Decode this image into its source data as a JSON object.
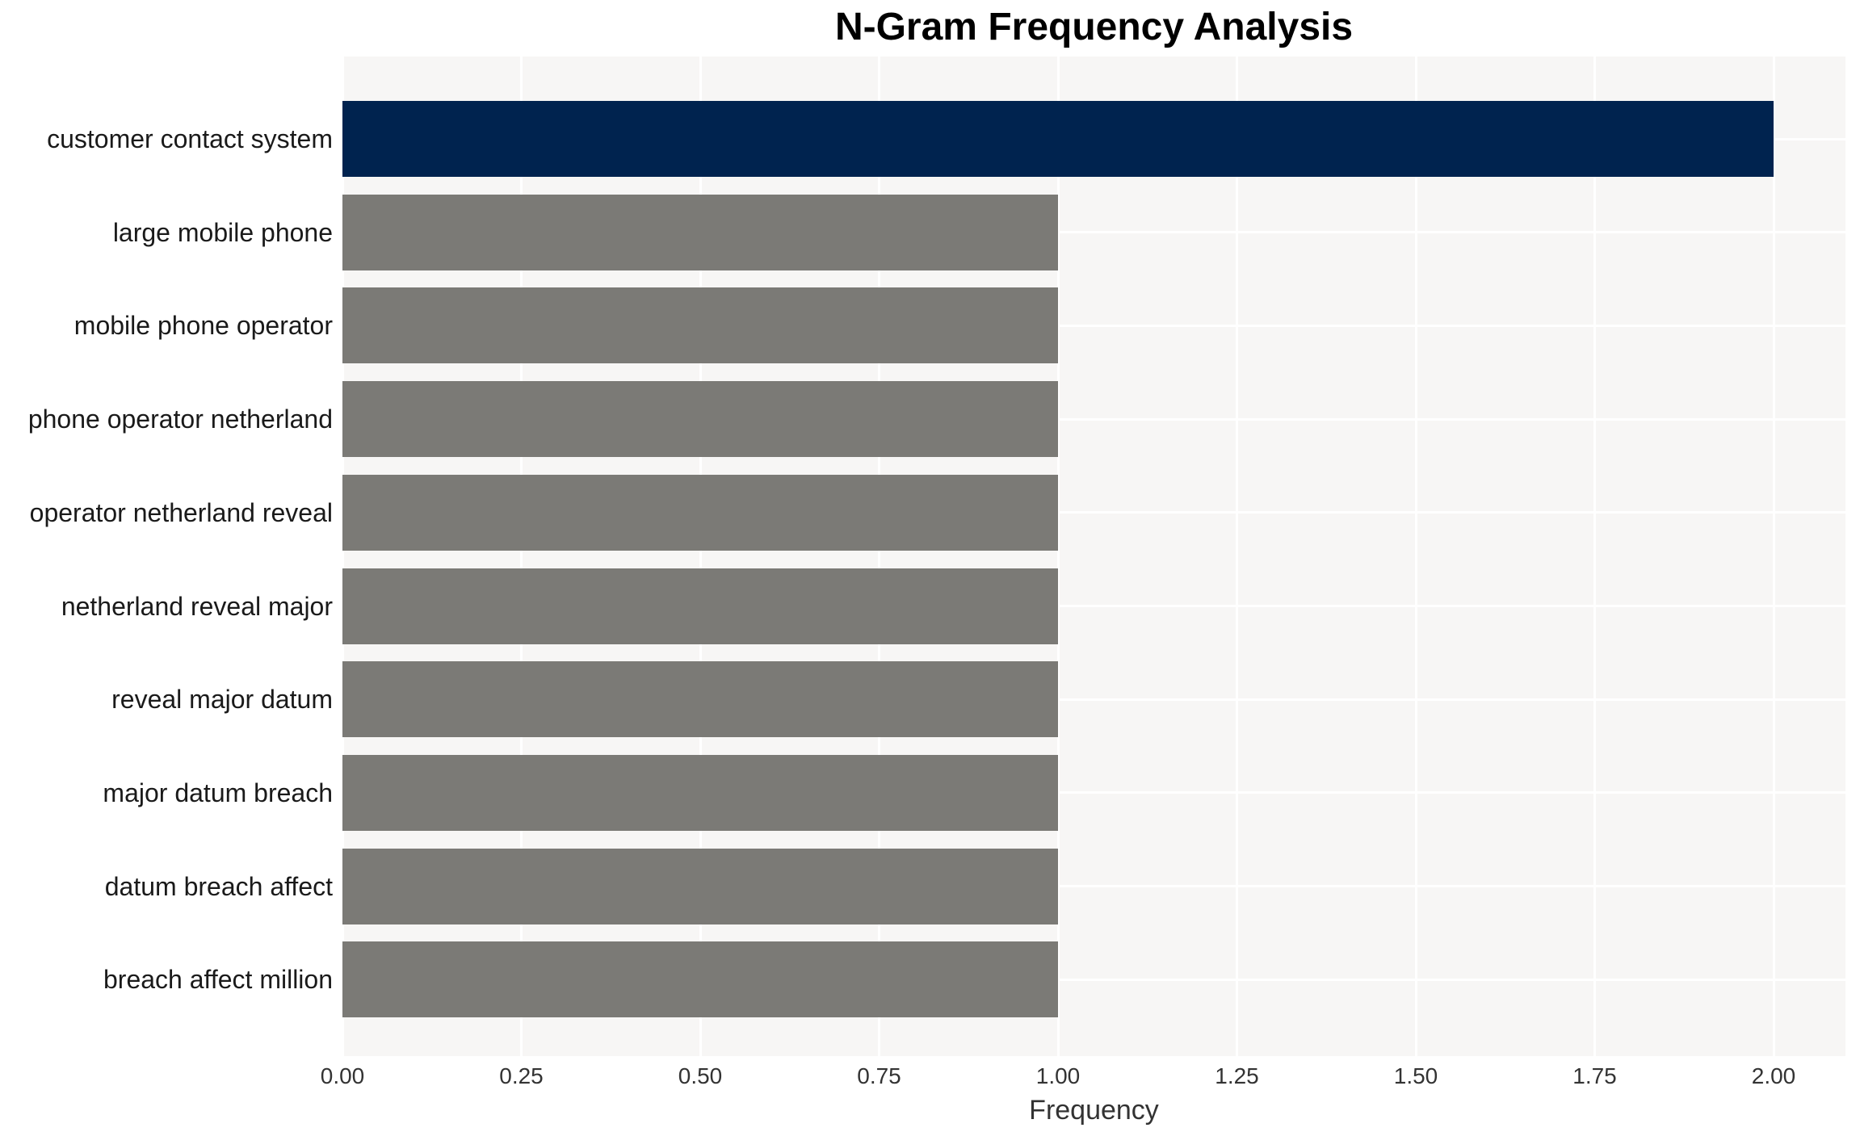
{
  "chart_data": {
    "type": "bar",
    "orientation": "horizontal",
    "title": "N-Gram Frequency Analysis",
    "xlabel": "Frequency",
    "ylabel": "",
    "categories": [
      "customer contact system",
      "large mobile phone",
      "mobile phone operator",
      "phone operator netherland",
      "operator netherland reveal",
      "netherland reveal major",
      "reveal major datum",
      "major datum breach",
      "datum breach affect",
      "breach affect million"
    ],
    "values": [
      2.0,
      1.0,
      1.0,
      1.0,
      1.0,
      1.0,
      1.0,
      1.0,
      1.0,
      1.0
    ],
    "bar_colors": [
      "#00234F",
      "#7B7A76",
      "#7B7A76",
      "#7B7A76",
      "#7B7A76",
      "#7B7A76",
      "#7B7A76",
      "#7B7A76",
      "#7B7A76",
      "#7B7A76"
    ],
    "xlim": [
      0,
      2.1
    ],
    "xticks": [
      0,
      0.25,
      0.5,
      0.75,
      1.0,
      1.25,
      1.5,
      1.75,
      2.0
    ],
    "xtick_labels": [
      "0.00",
      "0.25",
      "0.50",
      "0.75",
      "1.00",
      "1.25",
      "1.50",
      "1.75",
      "2.00"
    ],
    "grid": "white major gridlines on light-gray panel, vertical at x ticks and horizontal at category centers",
    "legend": "none",
    "data_labels": "none",
    "colors": {
      "highlight_bar": "#00234F",
      "default_bar": "#7B7A76",
      "panel_background": "#F7F6F5",
      "gridline": "#FFFFFF",
      "title_text": "#000000",
      "tick_text": "#333333",
      "category_text": "#1A1A1A",
      "page_background": "#FFFFFF"
    }
  }
}
